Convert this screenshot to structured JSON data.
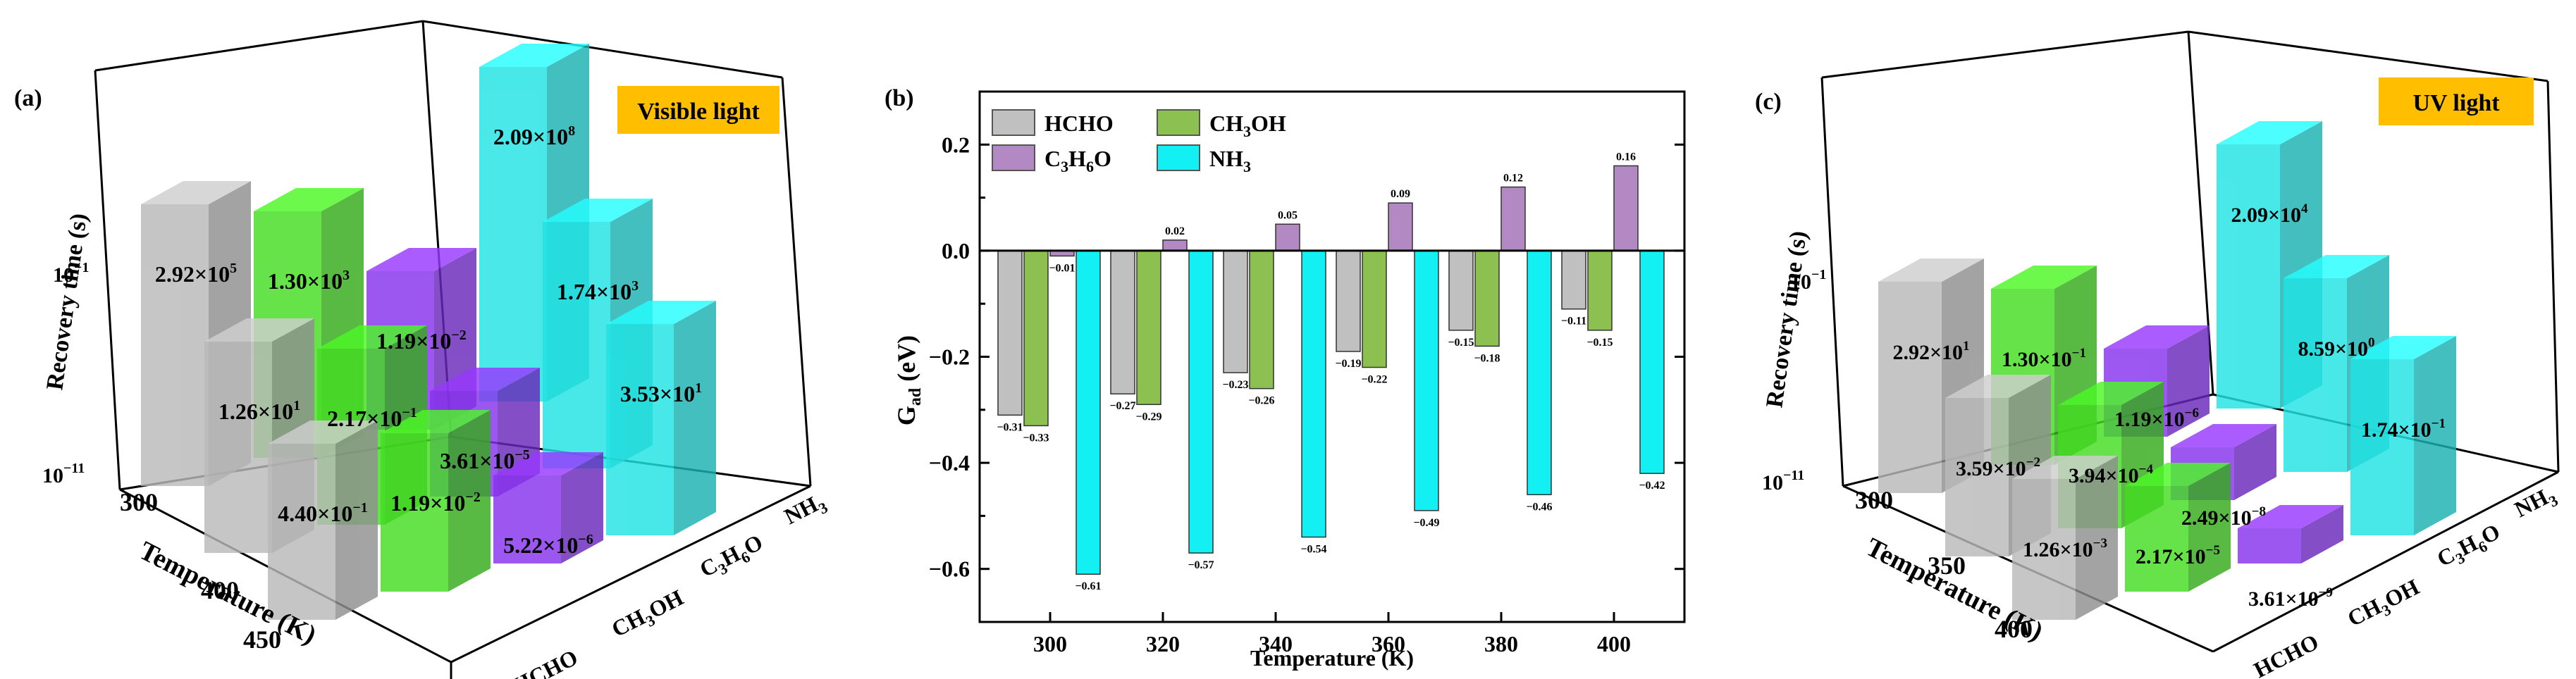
{
  "colors": {
    "HCHO": "#b9b9b9",
    "CH3OH": "#44dd22",
    "C3H6O": "#8833ee",
    "NH3": "#22e3e3",
    "ch_HCHO": "#c0c0c0",
    "ch_CH3OH": "#8cc152",
    "ch_C3H6O": "#b389c4",
    "ch_NH3": "#12f0f4",
    "badge": "#ffbf00"
  },
  "panel_a": {
    "label": "(a)",
    "badge": "Visible light",
    "zlabel": "Recovery time (s)",
    "ztick_top": "10",
    "ztick_top_exp": "−1",
    "ztick_bottom": "10",
    "ztick_bottom_exp": "−11",
    "xlabel": "Temperature (K)",
    "xticks": [
      "300",
      "400",
      "450"
    ],
    "gases": [
      "HCHO",
      "CH",
      "C",
      "NH"
    ],
    "gas_subs": {
      "ch3oh_a": "3",
      "ch3oh_b": "OH",
      "c3h6o_a": "3",
      "c3h6o_b": "H",
      "c3h6o_c": "6",
      "c3h6o_d": "O",
      "nh3": "3"
    }
  },
  "panel_c": {
    "label": "(c)",
    "badge": "UV light",
    "zlabel": "Recovery time (s)",
    "ztick_top": "10",
    "ztick_top_exp": "−1",
    "ztick_bottom": "10",
    "ztick_bottom_exp": "−11",
    "xlabel": "Temperature (K)",
    "xticks": [
      "300",
      "350",
      "400"
    ]
  },
  "chart_data": [
    {
      "type": "bar",
      "panel": "(a)",
      "projection": "3d",
      "title": "Visible light",
      "zlabel": "Recovery time (s)",
      "xlabel": "Temperature (K)",
      "x_categories": [
        "300",
        "400",
        "450"
      ],
      "y_categories": [
        "HCHO",
        "CH3OH",
        "C3H6O",
        "NH3"
      ],
      "zscale": "log",
      "series": [
        {
          "name": "HCHO",
          "labels": [
            "2.92×10^5",
            "1.26×10^1",
            "4.40×10^-1"
          ]
        },
        {
          "name": "CH3OH",
          "labels": [
            "1.30×10^3",
            "2.17×10^-1",
            "1.19×10^-2"
          ]
        },
        {
          "name": "C3H6O",
          "labels": [
            "1.19×10^-2",
            "3.61×10^-5",
            "5.22×10^-6"
          ]
        },
        {
          "name": "NH3",
          "labels": [
            "2.09×10^8",
            "1.74×10^3",
            "3.53×10^1"
          ]
        }
      ]
    },
    {
      "type": "bar",
      "panel": "(b)",
      "title": "",
      "xlabel": "Temperature (K)",
      "ylabel": "G_ad (eV)",
      "ylabel_main": "G",
      "ylabel_sub": "ad",
      "ylabel_unit": " (eV)",
      "categories": [
        "300",
        "320",
        "340",
        "360",
        "380",
        "400"
      ],
      "ylim": [
        -0.7,
        0.3
      ],
      "yticks": [
        0.2,
        0.0,
        -0.2,
        -0.4,
        -0.6
      ],
      "ytick_labels": [
        "0.2",
        "0.0",
        "−0.2",
        "−0.4",
        "−0.6"
      ],
      "series": [
        {
          "name": "HCHO",
          "values": [
            -0.31,
            -0.27,
            -0.23,
            -0.19,
            -0.15,
            -0.11
          ]
        },
        {
          "name": "CH3OH",
          "values": [
            -0.33,
            -0.29,
            -0.26,
            -0.22,
            -0.18,
            -0.15
          ]
        },
        {
          "name": "C3H6O",
          "values": [
            -0.01,
            0.02,
            0.05,
            0.09,
            0.12,
            0.16
          ]
        },
        {
          "name": "NH3",
          "values": [
            -0.61,
            -0.57,
            -0.54,
            -0.49,
            -0.46,
            -0.42
          ]
        }
      ],
      "value_labels": {
        "HCHO": [
          "-0.31",
          "-0.27",
          "-0.23",
          "-0.19",
          "-0.15",
          "-0.11"
        ],
        "CH3OH": [
          "-0.33",
          "-0.29",
          "-0.26",
          "-0.22",
          "-0.18",
          "-0.15"
        ],
        "C3H6O": [
          "-0.01",
          "0.02",
          "0.05",
          "0.09",
          "0.12",
          "0.16"
        ],
        "NH3": [
          "-0.61",
          "-0.57",
          "-0.54",
          "-0.49",
          "-0.46",
          "-0.42"
        ]
      },
      "legend": {
        "position": "top-left",
        "HCHO": "HCHO",
        "CH3OH_a": "CH",
        "CH3OH_b": "3",
        "CH3OH_c": "OH",
        "C3H6O_a": "C",
        "C3H6O_b": "3",
        "C3H6O_c": "H",
        "C3H6O_d": "6",
        "C3H6O_e": "O",
        "NH3_a": "NH",
        "NH3_b": "3"
      }
    },
    {
      "type": "bar",
      "panel": "(c)",
      "projection": "3d",
      "title": "UV light",
      "zlabel": "Recovery time (s)",
      "xlabel": "Temperature (K)",
      "x_categories": [
        "300",
        "350",
        "400"
      ],
      "y_categories": [
        "HCHO",
        "CH3OH",
        "C3H6O",
        "NH3"
      ],
      "zscale": "log",
      "series": [
        {
          "name": "HCHO",
          "labels": [
            "2.92×10^1",
            "3.59×10^-2",
            "1.26×10^-3"
          ]
        },
        {
          "name": "CH3OH",
          "labels": [
            "1.30×10^-1",
            "3.94×10^-4",
            "2.17×10^-5"
          ]
        },
        {
          "name": "C3H6O",
          "labels": [
            "1.19×10^-6",
            "2.49×10^-8",
            "3.61×10^-9"
          ]
        },
        {
          "name": "NH3",
          "labels": [
            "2.09×10^4",
            "8.59×10^0",
            "1.74×10^-1"
          ]
        }
      ]
    }
  ]
}
